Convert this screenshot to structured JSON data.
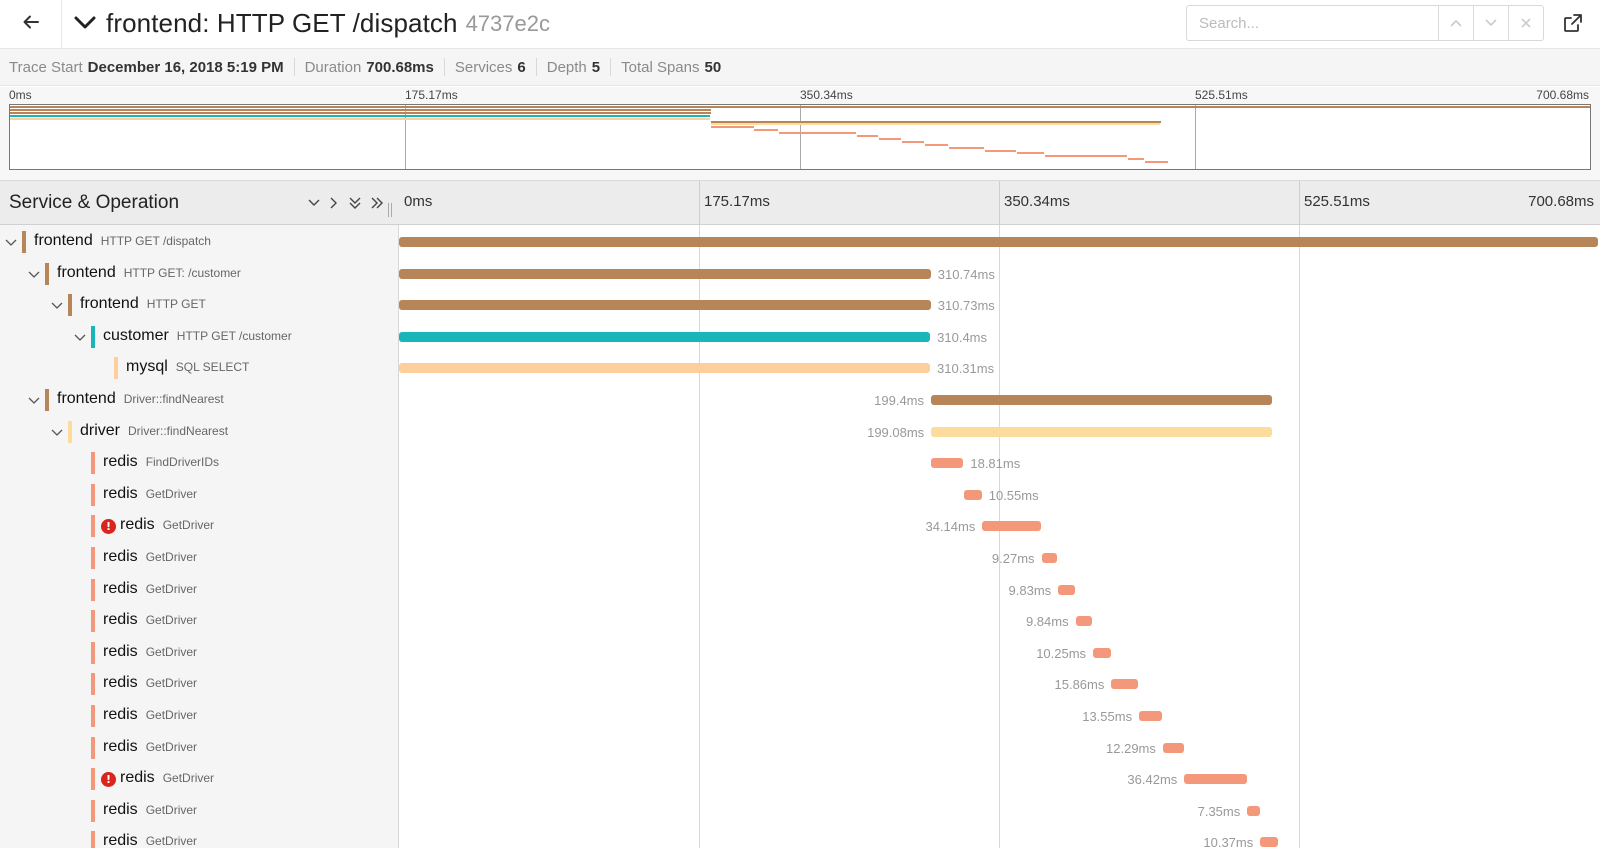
{
  "header": {
    "title": "frontend: HTTP GET /dispatch",
    "trace_id": "4737e2c",
    "search_placeholder": "Search..."
  },
  "summary": [
    {
      "label": "Trace Start",
      "value": "December 16, 2018 5:19 PM"
    },
    {
      "label": "Duration",
      "value": "700.68ms"
    },
    {
      "label": "Services",
      "value": "6"
    },
    {
      "label": "Depth",
      "value": "5"
    },
    {
      "label": "Total Spans",
      "value": "50"
    }
  ],
  "ticks": [
    "0ms",
    "175.17ms",
    "350.34ms",
    "525.51ms",
    "700.68ms"
  ],
  "timeline": {
    "column_title": "Service & Operation",
    "total_ms": 700.68
  },
  "colors": {
    "frontend": "#b78558",
    "customer": "#18b5ba",
    "mysql": "#fdcf9c",
    "driver": "#fcdc9c",
    "redis": "#f3987a",
    "error": "#d9251d"
  },
  "spans": [
    {
      "service": "frontend",
      "operation": "HTTP GET /dispatch",
      "depth": 0,
      "expandable": true,
      "error": false,
      "start_ms": 0,
      "duration_ms": 700.68,
      "label": "",
      "label_side": "right"
    },
    {
      "service": "frontend",
      "operation": "HTTP GET: /customer",
      "depth": 1,
      "expandable": true,
      "error": false,
      "start_ms": 0,
      "duration_ms": 310.74,
      "label": "310.74ms",
      "label_side": "right"
    },
    {
      "service": "frontend",
      "operation": "HTTP GET",
      "depth": 2,
      "expandable": true,
      "error": false,
      "start_ms": 0,
      "duration_ms": 310.73,
      "label": "310.73ms",
      "label_side": "right"
    },
    {
      "service": "customer",
      "operation": "HTTP GET /customer",
      "depth": 3,
      "expandable": true,
      "error": false,
      "start_ms": 0,
      "duration_ms": 310.4,
      "label": "310.4ms",
      "label_side": "right"
    },
    {
      "service": "mysql",
      "operation": "SQL SELECT",
      "depth": 4,
      "expandable": false,
      "error": false,
      "start_ms": 0,
      "duration_ms": 310.31,
      "label": "310.31ms",
      "label_side": "right"
    },
    {
      "service": "frontend",
      "operation": "Driver::findNearest",
      "depth": 1,
      "expandable": true,
      "error": false,
      "start_ms": 310.9,
      "duration_ms": 199.4,
      "label": "199.4ms",
      "label_side": "left"
    },
    {
      "service": "driver",
      "operation": "Driver::findNearest",
      "depth": 2,
      "expandable": true,
      "error": false,
      "start_ms": 311.0,
      "duration_ms": 199.08,
      "label": "199.08ms",
      "label_side": "left"
    },
    {
      "service": "redis",
      "operation": "FindDriverIDs",
      "depth": 3,
      "expandable": false,
      "error": false,
      "start_ms": 311.0,
      "duration_ms": 18.81,
      "label": "18.81ms",
      "label_side": "right"
    },
    {
      "service": "redis",
      "operation": "GetDriver",
      "depth": 3,
      "expandable": false,
      "error": false,
      "start_ms": 330.0,
      "duration_ms": 10.55,
      "label": "10.55ms",
      "label_side": "right"
    },
    {
      "service": "redis",
      "operation": "GetDriver",
      "depth": 3,
      "expandable": false,
      "error": true,
      "start_ms": 340.9,
      "duration_ms": 34.14,
      "label": "34.14ms",
      "label_side": "left"
    },
    {
      "service": "redis",
      "operation": "GetDriver",
      "depth": 3,
      "expandable": false,
      "error": false,
      "start_ms": 375.5,
      "duration_ms": 9.27,
      "label": "9.27ms",
      "label_side": "left"
    },
    {
      "service": "redis",
      "operation": "GetDriver",
      "depth": 3,
      "expandable": false,
      "error": false,
      "start_ms": 385.2,
      "duration_ms": 9.83,
      "label": "9.83ms",
      "label_side": "left"
    },
    {
      "service": "redis",
      "operation": "GetDriver",
      "depth": 3,
      "expandable": false,
      "error": false,
      "start_ms": 395.4,
      "duration_ms": 9.84,
      "label": "9.84ms",
      "label_side": "left"
    },
    {
      "service": "redis",
      "operation": "GetDriver",
      "depth": 3,
      "expandable": false,
      "error": false,
      "start_ms": 405.6,
      "duration_ms": 10.25,
      "label": "10.25ms",
      "label_side": "left"
    },
    {
      "service": "redis",
      "operation": "GetDriver",
      "depth": 3,
      "expandable": false,
      "error": false,
      "start_ms": 416.3,
      "duration_ms": 15.86,
      "label": "15.86ms",
      "label_side": "left"
    },
    {
      "service": "redis",
      "operation": "GetDriver",
      "depth": 3,
      "expandable": false,
      "error": false,
      "start_ms": 432.5,
      "duration_ms": 13.55,
      "label": "13.55ms",
      "label_side": "left"
    },
    {
      "service": "redis",
      "operation": "GetDriver",
      "depth": 3,
      "expandable": false,
      "error": false,
      "start_ms": 446.4,
      "duration_ms": 12.29,
      "label": "12.29ms",
      "label_side": "left"
    },
    {
      "service": "redis",
      "operation": "GetDriver",
      "depth": 3,
      "expandable": false,
      "error": true,
      "start_ms": 458.9,
      "duration_ms": 36.42,
      "label": "36.42ms",
      "label_side": "left"
    },
    {
      "service": "redis",
      "operation": "GetDriver",
      "depth": 3,
      "expandable": false,
      "error": false,
      "start_ms": 495.7,
      "duration_ms": 7.35,
      "label": "7.35ms",
      "label_side": "left"
    },
    {
      "service": "redis",
      "operation": "GetDriver",
      "depth": 3,
      "expandable": false,
      "error": false,
      "start_ms": 503.3,
      "duration_ms": 10.37,
      "label": "10.37ms",
      "label_side": "left"
    }
  ]
}
